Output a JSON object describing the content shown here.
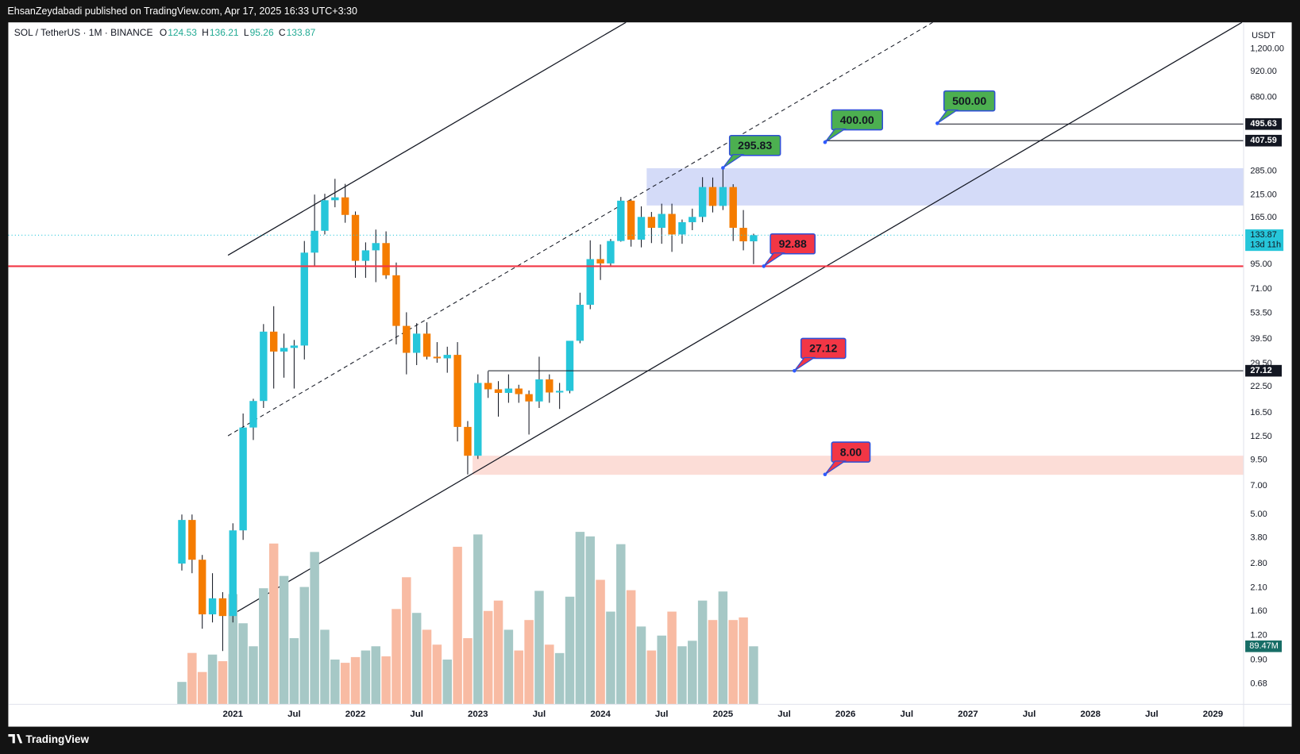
{
  "header": {
    "publisher": "EhsanZeydabadi published on TradingView.com, Apr 17, 2025 16:33 UTC+3:30"
  },
  "footer": {
    "brand": "TradingView"
  },
  "chart_data": {
    "type": "candlestick",
    "symbol": "SOL / TetherUS · 1M · BINANCE",
    "ohlc_keys": [
      "O",
      "H",
      "L",
      "C"
    ],
    "currency": "USDT",
    "countdown": "13d 11h",
    "up_color": "#26c6da",
    "down_color": "#f57c00",
    "x": [
      "2020-08",
      "2020-09",
      "2020-10",
      "2020-11",
      "2020-12",
      "2021-01",
      "2021-02",
      "2021-03",
      "2021-04",
      "2021-05",
      "2021-06",
      "2021-07",
      "2021-08",
      "2021-09",
      "2021-10",
      "2021-11",
      "2021-12",
      "2022-01",
      "2022-02",
      "2022-03",
      "2022-04",
      "2022-05",
      "2022-06",
      "2022-07",
      "2022-08",
      "2022-09",
      "2022-10",
      "2022-11",
      "2022-12",
      "2023-01",
      "2023-02",
      "2023-03",
      "2023-04",
      "2023-05",
      "2023-06",
      "2023-07",
      "2023-08",
      "2023-09",
      "2023-10",
      "2023-11",
      "2023-12",
      "2024-01",
      "2024-02",
      "2024-03",
      "2024-04",
      "2024-05",
      "2024-06",
      "2024-07",
      "2024-08",
      "2024-09",
      "2024-10",
      "2024-11",
      "2024-12",
      "2025-01",
      "2025-02",
      "2025-03",
      "2025-04"
    ],
    "open": [
      2.8,
      4.68,
      2.93,
      1.54,
      1.86,
      1.51,
      4.14,
      13.9,
      19,
      43,
      34,
      35.5,
      36.5,
      109,
      141,
      202,
      209,
      170,
      99,
      112,
      122,
      83.5,
      46,
      33.5,
      42,
      32,
      31.4,
      32.7,
      14,
      9.97,
      23.5,
      21.8,
      20.9,
      22,
      20.6,
      18.9,
      24.5,
      21,
      21.4,
      38.6,
      59,
      101,
      96,
      125,
      201,
      127,
      166,
      146,
      172,
      135,
      156,
      166,
      236,
      189,
      236,
      146,
      124.53
    ],
    "high": [
      4.99,
      4.99,
      3.1,
      2.5,
      2,
      4.5,
      16.4,
      19.5,
      47,
      58,
      42,
      39,
      125,
      216,
      218,
      260,
      245,
      177,
      123,
      143,
      140,
      97,
      54,
      47.5,
      48,
      38,
      36,
      38,
      15,
      26,
      27,
      24,
      26,
      23,
      21.5,
      32,
      26,
      23.5,
      38,
      68,
      126,
      120,
      128,
      210,
      205,
      188,
      176,
      194,
      194,
      161,
      183,
      265,
      264,
      295.83,
      244,
      180,
      136.21
    ],
    "low": [
      2.58,
      2.5,
      1.3,
      1.4,
      1,
      1.4,
      3.7,
      12,
      17.5,
      22,
      25,
      22,
      31,
      92,
      135,
      186,
      155,
      81,
      81,
      77,
      80,
      37,
      26,
      29,
      31,
      29.8,
      26.5,
      11.8,
      8,
      9.6,
      19.7,
      15.8,
      18.6,
      18.6,
      12.8,
      17.5,
      18.6,
      17.3,
      20.8,
      37.5,
      56,
      79,
      93,
      124,
      117,
      116,
      122,
      121,
      110,
      121,
      142,
      156,
      175,
      180,
      125,
      112,
      95.26
    ],
    "close": [
      4.68,
      2.93,
      1.54,
      1.86,
      1.51,
      4.14,
      13.9,
      19,
      43,
      34,
      35.5,
      36.5,
      109,
      141,
      202,
      209,
      170,
      99,
      112,
      122,
      83.5,
      46,
      33.5,
      42,
      32,
      31.4,
      32.7,
      14,
      9.97,
      23.5,
      21.8,
      20.9,
      22,
      20.6,
      18.9,
      24.5,
      21,
      21.4,
      38.6,
      59,
      101,
      96,
      125,
      201,
      127,
      166,
      146,
      172,
      135,
      156,
      166,
      236,
      189,
      236,
      146,
      124.53,
      133.87
    ],
    "volume": {
      "values": [
        34.5,
        79.2,
        49.8,
        76.7,
        66.5,
        170,
        125,
        89.5,
        179,
        248,
        198,
        102,
        181,
        235,
        115,
        69,
        64,
        72.8,
        83,
        89.5,
        74,
        147,
        196,
        141,
        115,
        92,
        69,
        243,
        102,
        262,
        144,
        160,
        115,
        83,
        130,
        175,
        92,
        79,
        166,
        266,
        259,
        192,
        143,
        247,
        176,
        120,
        83,
        106,
        143,
        89.5,
        98,
        160,
        130,
        174,
        130,
        134,
        89.47
      ],
      "value_labels": [
        null,
        null,
        null,
        null,
        null,
        null,
        null,
        null,
        null,
        null,
        null,
        null,
        null,
        null,
        null,
        null,
        null,
        null,
        null,
        null,
        null,
        null,
        null,
        null,
        null,
        null,
        null,
        null,
        null,
        null,
        null,
        null,
        null,
        null,
        null,
        null,
        null,
        null,
        null,
        null,
        null,
        null,
        null,
        null,
        null,
        null,
        null,
        null,
        null,
        null,
        null,
        null,
        null,
        null,
        null,
        null,
        "89.47M"
      ],
      "ylim": [
        0,
        1052
      ],
      "up_color": "#a6c8c6",
      "down_color": "#f8bba3",
      "tag_color": "#176d66"
    },
    "log_scale": true,
    "grid": false,
    "ylim": [
      0.534,
      1641
    ],
    "yticks": [
      {
        "value": 1200,
        "label": "1,200.00"
      },
      {
        "value": 920,
        "label": "920.00"
      },
      {
        "value": 680,
        "label": "680.00"
      },
      {
        "value": 285,
        "label": "285.00"
      },
      {
        "value": 215,
        "label": "215.00"
      },
      {
        "value": 165,
        "label": "165.00"
      },
      {
        "value": 95,
        "label": "95.00"
      },
      {
        "value": 71,
        "label": "71.00"
      },
      {
        "value": 53.5,
        "label": "53.50"
      },
      {
        "value": 39.5,
        "label": "39.50"
      },
      {
        "value": 29.5,
        "label": "29.50"
      },
      {
        "value": 22.5,
        "label": "22.50"
      },
      {
        "value": 16.5,
        "label": "16.50"
      },
      {
        "value": 12.5,
        "label": "12.50"
      },
      {
        "value": 9.5,
        "label": "9.50"
      },
      {
        "value": 7,
        "label": "7.00"
      },
      {
        "value": 5,
        "label": "5.00"
      },
      {
        "value": 3.8,
        "label": "3.80"
      },
      {
        "value": 2.8,
        "label": "2.80"
      },
      {
        "value": 2.1,
        "label": "2.10"
      },
      {
        "value": 1.6,
        "label": "1.60"
      },
      {
        "value": 1.2,
        "label": "1.20"
      },
      {
        "value": 0.9,
        "label": "0.90"
      },
      {
        "value": 0.68,
        "label": "0.68"
      }
    ],
    "xlim": [
      "2019-03",
      "2029-04"
    ],
    "xticks": [
      {
        "value": "2021-01",
        "label": "2021"
      },
      {
        "value": "2021-07",
        "label": "Jul"
      },
      {
        "value": "2022-01",
        "label": "2022"
      },
      {
        "value": "2022-07",
        "label": "Jul"
      },
      {
        "value": "2023-01",
        "label": "2023"
      },
      {
        "value": "2023-07",
        "label": "Jul"
      },
      {
        "value": "2024-01",
        "label": "2024"
      },
      {
        "value": "2024-07",
        "label": "Jul"
      },
      {
        "value": "2025-01",
        "label": "2025"
      },
      {
        "value": "2025-07",
        "label": "Jul"
      },
      {
        "value": "2026-01",
        "label": "2026"
      },
      {
        "value": "2026-07",
        "label": "Jul"
      },
      {
        "value": "2027-01",
        "label": "2027"
      },
      {
        "value": "2027-07",
        "label": "Jul"
      },
      {
        "value": "2028-01",
        "label": "2028"
      },
      {
        "value": "2028-07",
        "label": "Jul"
      },
      {
        "value": "2029-01",
        "label": "2029"
      }
    ],
    "price_lines": [
      {
        "value": 495.63,
        "from": "2026-10",
        "color": "#131722",
        "tag": true
      },
      {
        "value": 407.59,
        "from": "2025-11",
        "color": "#131722",
        "tag": true
      },
      {
        "value": 27.12,
        "from": "2023-02",
        "color": "#131722",
        "tag": true
      },
      {
        "value": 92.88,
        "from": "2019-03",
        "color": "#f23645",
        "tag": false
      }
    ],
    "annotations": [
      {
        "value": 295.83,
        "label": "295.83",
        "x": "2025-01",
        "color": "#4caf50"
      },
      {
        "value": 400,
        "label": "400.00",
        "x": "2025-11",
        "color": "#4caf50"
      },
      {
        "value": 500,
        "label": "500.00",
        "x": "2026-10",
        "color": "#4caf50"
      },
      {
        "value": 92.88,
        "label": "92.88",
        "x": "2025-05",
        "color": "#f23645"
      },
      {
        "value": 27.12,
        "label": "27.12",
        "x": "2025-08",
        "color": "#f23645"
      },
      {
        "value": 8,
        "label": "8.00",
        "x": "2025-11",
        "color": "#f23645"
      }
    ]
  }
}
